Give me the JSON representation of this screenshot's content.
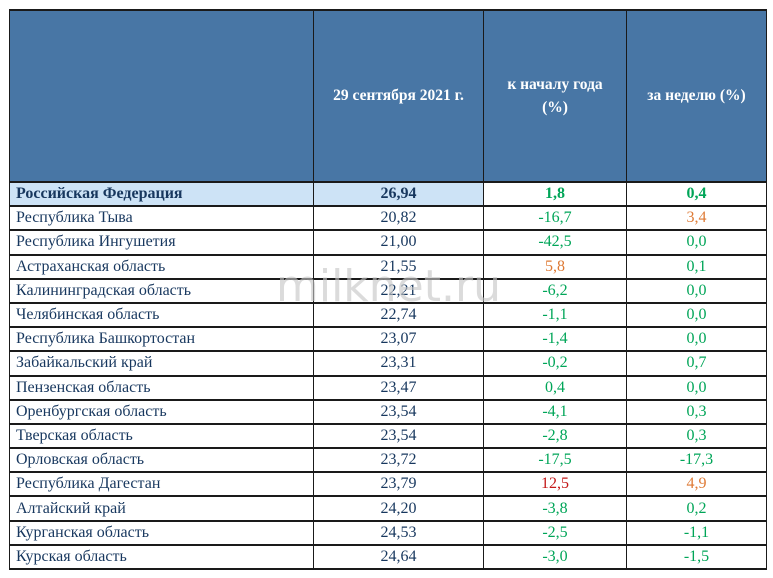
{
  "watermark": "milknet.ru",
  "colors": {
    "header_bg": "#4876a5",
    "header_text": "#ffffff",
    "highlight_bg": "#cde3f6",
    "text_navy": "#17375e",
    "green": "#00a558",
    "orange": "#de7a35",
    "red": "#c41818",
    "border": "#1a1a1a",
    "watermark_gray": "#c6c6c6"
  },
  "table": {
    "headers": {
      "region": "",
      "value": "29 сентября 2021 г.",
      "ytd": "к началу года (%)",
      "week": "за неделю (%)"
    },
    "rows": [
      {
        "region": "Российская Федерация",
        "value": "26,94",
        "ytd": "1,8",
        "ytd_color": "green",
        "week": "0,4",
        "week_color": "green",
        "highlight": true
      },
      {
        "region": "Республика Тыва",
        "value": "20,82",
        "ytd": "-16,7",
        "ytd_color": "green",
        "week": "3,4",
        "week_color": "orange",
        "highlight": false
      },
      {
        "region": "Республика Ингушетия",
        "value": "21,00",
        "ytd": "-42,5",
        "ytd_color": "green",
        "week": "0,0",
        "week_color": "green",
        "highlight": false
      },
      {
        "region": "Астраханская область",
        "value": "21,55",
        "ytd": "5,8",
        "ytd_color": "orange",
        "week": "0,1",
        "week_color": "green",
        "highlight": false
      },
      {
        "region": "Калининградская область",
        "value": "22,21",
        "ytd": "-6,2",
        "ytd_color": "green",
        "week": "0,0",
        "week_color": "green",
        "highlight": false
      },
      {
        "region": "Челябинская область",
        "value": "22,74",
        "ytd": "-1,1",
        "ytd_color": "green",
        "week": "0,0",
        "week_color": "green",
        "highlight": false
      },
      {
        "region": "Республика Башкортостан",
        "value": "23,07",
        "ytd": "-1,4",
        "ytd_color": "green",
        "week": "0,0",
        "week_color": "green",
        "highlight": false
      },
      {
        "region": "Забайкальский край",
        "value": "23,31",
        "ytd": "-0,2",
        "ytd_color": "green",
        "week": "0,7",
        "week_color": "green",
        "highlight": false
      },
      {
        "region": "Пензенская область",
        "value": "23,47",
        "ytd": "0,4",
        "ytd_color": "green",
        "week": "0,0",
        "week_color": "green",
        "highlight": false
      },
      {
        "region": "Оренбургская область",
        "value": "23,54",
        "ytd": "-4,1",
        "ytd_color": "green",
        "week": "0,3",
        "week_color": "green",
        "highlight": false
      },
      {
        "region": "Тверская область",
        "value": "23,54",
        "ytd": "-2,8",
        "ytd_color": "green",
        "week": "0,3",
        "week_color": "green",
        "highlight": false
      },
      {
        "region": "Орловская область",
        "value": "23,72",
        "ytd": "-17,5",
        "ytd_color": "green",
        "week": "-17,3",
        "week_color": "green",
        "highlight": false
      },
      {
        "region": "Республика Дагестан",
        "value": "23,79",
        "ytd": "12,5",
        "ytd_color": "red",
        "week": "4,9",
        "week_color": "orange",
        "highlight": false
      },
      {
        "region": "Алтайский край",
        "value": "24,20",
        "ytd": "-3,8",
        "ytd_color": "green",
        "week": "0,2",
        "week_color": "green",
        "highlight": false
      },
      {
        "region": "Курганская область",
        "value": "24,53",
        "ytd": "-2,5",
        "ytd_color": "green",
        "week": "-1,1",
        "week_color": "green",
        "highlight": false
      },
      {
        "region": "Курская область",
        "value": "24,64",
        "ytd": "-3,0",
        "ytd_color": "green",
        "week": "-1,5",
        "week_color": "green",
        "highlight": false
      }
    ]
  }
}
